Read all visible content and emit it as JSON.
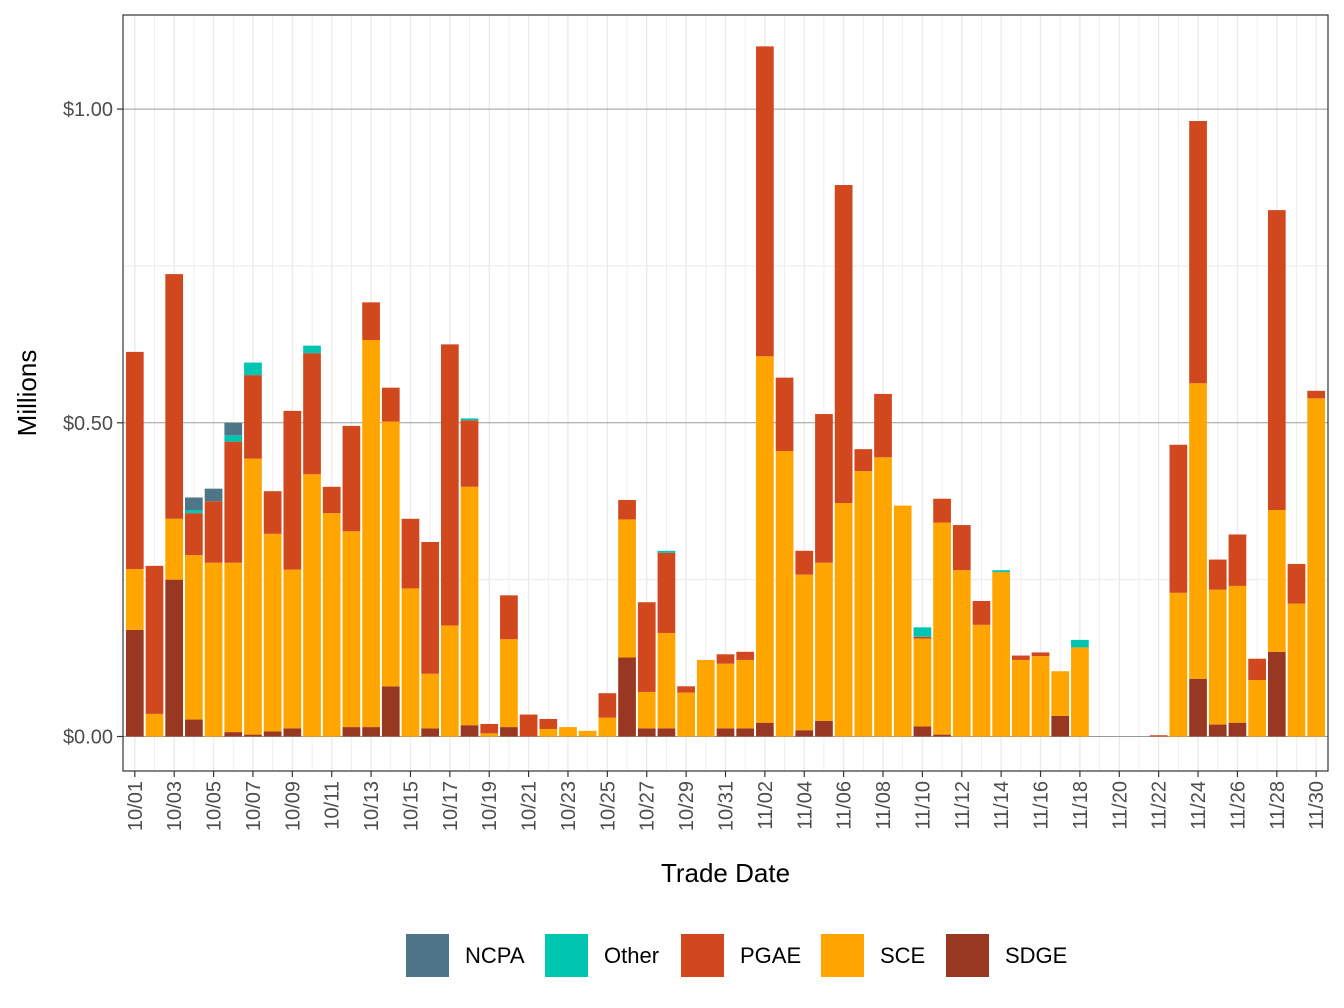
{
  "chart_data": {
    "type": "bar",
    "stacked": true,
    "xlabel": "Trade Date",
    "ylabel": "Millions",
    "ylim": [
      -0.055,
      1.15
    ],
    "y_ticks": [
      0.0,
      0.5,
      1.0
    ],
    "y_tick_labels": [
      "$0.00",
      "$0.50",
      "$1.00"
    ],
    "legend_position": "bottom",
    "grid": true,
    "categories": [
      "10/01",
      "10/02",
      "10/03",
      "10/04",
      "10/05",
      "10/06",
      "10/07",
      "10/08",
      "10/09",
      "10/10",
      "10/11",
      "10/12",
      "10/13",
      "10/14",
      "10/15",
      "10/16",
      "10/17",
      "10/18",
      "10/19",
      "10/20",
      "10/21",
      "10/22",
      "10/23",
      "10/24",
      "10/25",
      "10/26",
      "10/27",
      "10/28",
      "10/29",
      "10/30",
      "10/31",
      "11/01",
      "11/02",
      "11/03",
      "11/04",
      "11/05",
      "11/06",
      "11/07",
      "11/08",
      "11/09",
      "11/10",
      "11/11",
      "11/12",
      "11/13",
      "11/14",
      "11/15",
      "11/16",
      "11/17",
      "11/18",
      "11/19",
      "11/20",
      "11/21",
      "11/22",
      "11/23",
      "11/24",
      "11/25",
      "11/26",
      "11/27",
      "11/28",
      "11/29",
      "11/30"
    ],
    "x_tick_labels": [
      "10/01",
      "10/03",
      "10/05",
      "10/07",
      "10/09",
      "10/11",
      "10/13",
      "10/15",
      "10/17",
      "10/19",
      "10/21",
      "10/23",
      "10/25",
      "10/27",
      "10/29",
      "10/31",
      "11/02",
      "11/04",
      "11/06",
      "11/08",
      "11/10",
      "11/12",
      "11/14",
      "11/16",
      "11/18",
      "11/20",
      "11/22",
      "11/24",
      "11/26",
      "11/28",
      "11/30"
    ],
    "series": [
      {
        "name": "SDGE",
        "color": "#993822",
        "values": [
          0.17,
          0.0,
          0.25,
          0.027,
          0.0,
          0.007,
          0.003,
          0.008,
          0.013,
          0.0,
          0.0,
          0.015,
          0.015,
          0.08,
          0.0,
          0.013,
          0.0,
          0.018,
          0.0,
          0.015,
          0.0,
          0.0,
          0.0,
          0.0,
          0.0,
          0.126,
          0.013,
          0.013,
          0.0,
          0.0,
          0.013,
          0.013,
          0.022,
          0.0,
          0.01,
          0.025,
          0.0,
          0.0,
          0.0,
          0.0,
          0.016,
          0.003,
          0.0,
          0.0,
          0.0,
          0.0,
          0.0,
          0.033,
          0.0,
          0.0,
          0.0,
          0.0,
          0.0,
          0.0,
          0.092,
          0.019,
          0.022,
          0.0,
          0.135,
          0.0,
          0.0
        ]
      },
      {
        "name": "SCE",
        "color": "#FFA500",
        "values": [
          0.097,
          0.036,
          0.097,
          0.262,
          0.277,
          0.27,
          0.44,
          0.315,
          0.253,
          0.418,
          0.356,
          0.312,
          0.617,
          0.422,
          0.236,
          0.087,
          0.177,
          0.38,
          0.005,
          0.14,
          0.0,
          0.012,
          0.015,
          0.009,
          0.03,
          0.22,
          0.058,
          0.152,
          0.07,
          0.122,
          0.103,
          0.109,
          0.584,
          0.455,
          0.248,
          0.252,
          0.372,
          0.423,
          0.445,
          0.368,
          0.14,
          0.338,
          0.265,
          0.178,
          0.262,
          0.122,
          0.128,
          0.071,
          0.142,
          0.0,
          0.0,
          0.0,
          0.0,
          0.229,
          0.471,
          0.215,
          0.218,
          0.09,
          0.226,
          0.212,
          0.539
        ]
      },
      {
        "name": "PGAE",
        "color": "#D1481F",
        "values": [
          0.346,
          0.236,
          0.39,
          0.067,
          0.098,
          0.193,
          0.133,
          0.068,
          0.253,
          0.193,
          0.042,
          0.168,
          0.06,
          0.054,
          0.111,
          0.21,
          0.448,
          0.106,
          0.015,
          0.07,
          0.035,
          0.016,
          0.0,
          0.0,
          0.039,
          0.031,
          0.143,
          0.128,
          0.01,
          0.0,
          0.015,
          0.013,
          0.494,
          0.117,
          0.038,
          0.237,
          0.507,
          0.035,
          0.101,
          0.0,
          0.003,
          0.038,
          0.072,
          0.038,
          0.0,
          0.007,
          0.006,
          0.0,
          0.0,
          0.0,
          0.0,
          0.0,
          0.002,
          0.236,
          0.418,
          0.048,
          0.082,
          0.034,
          0.478,
          0.063,
          0.012
        ]
      },
      {
        "name": "Other",
        "color": "#00C5B0",
        "values": [
          0.0,
          0.0,
          0.0,
          0.005,
          0.0,
          0.01,
          0.02,
          0.0,
          0.0,
          0.012,
          0.0,
          0.0,
          0.0,
          0.0,
          0.0,
          0.0,
          0.0,
          0.003,
          0.0,
          0.0,
          0.0,
          0.0,
          0.0,
          0.0,
          0.0,
          0.0,
          0.0,
          0.003,
          0.0,
          0.0,
          0.0,
          0.0,
          0.0,
          0.0,
          0.0,
          0.0,
          0.0,
          0.0,
          0.0,
          0.0,
          0.015,
          0.0,
          0.0,
          0.0,
          0.003,
          0.0,
          0.0,
          0.0,
          0.012,
          0.0,
          0.0,
          0.0,
          0.0,
          0.0,
          0.0,
          0.0,
          0.0,
          0.0,
          0.0,
          0.0,
          0.0
        ]
      },
      {
        "name": "NCPA",
        "color": "#4E7588",
        "values": [
          0.0,
          0.0,
          0.0,
          0.02,
          0.02,
          0.02,
          0.0,
          0.0,
          0.0,
          0.0,
          0.0,
          0.0,
          0.0,
          0.0,
          0.0,
          0.0,
          0.0,
          0.0,
          0.0,
          0.0,
          0.0,
          0.0,
          0.0,
          0.0,
          0.0,
          0.0,
          0.0,
          0.0,
          0.0,
          0.0,
          0.0,
          0.0,
          0.0,
          0.0,
          0.0,
          0.0,
          0.0,
          0.0,
          0.0,
          0.0,
          0.0,
          0.0,
          0.0,
          0.0,
          0.0,
          0.0,
          0.0,
          0.0,
          0.0,
          0.0,
          0.0,
          0.0,
          0.0,
          0.0,
          0.0,
          0.0,
          0.0,
          0.0,
          0.0,
          0.0,
          0.0
        ]
      }
    ],
    "legend": [
      "NCPA",
      "Other",
      "PGAE",
      "SCE",
      "SDGE"
    ]
  }
}
